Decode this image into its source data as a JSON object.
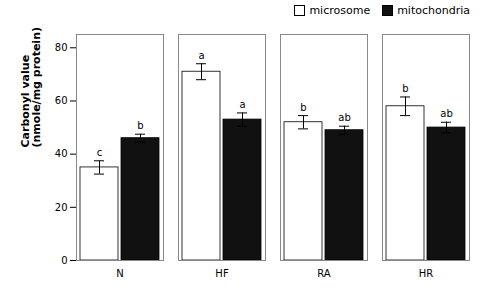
{
  "chart_data": {
    "type": "bar",
    "categories": [
      "N",
      "HF",
      "RA",
      "HR"
    ],
    "series": [
      {
        "name": "microsome",
        "color": "#ffffff",
        "values": [
          35,
          71,
          52,
          58
        ],
        "errors": [
          2.5,
          3.0,
          2.5,
          3.5
        ],
        "letters": [
          "c",
          "a",
          "b",
          "b"
        ]
      },
      {
        "name": "mitochondria",
        "color": "#111111",
        "values": [
          46,
          53,
          49,
          50
        ],
        "errors": [
          1.5,
          2.5,
          1.5,
          2.0
        ],
        "letters": [
          "b",
          "a",
          "ab",
          "ab"
        ]
      }
    ],
    "ylabel": "Carbonyl value\n(nmole/mg protein)",
    "ylim": [
      0,
      85
    ],
    "yticks": [
      0,
      20,
      40,
      60,
      80
    ],
    "grid": false,
    "legend": "upper right"
  }
}
